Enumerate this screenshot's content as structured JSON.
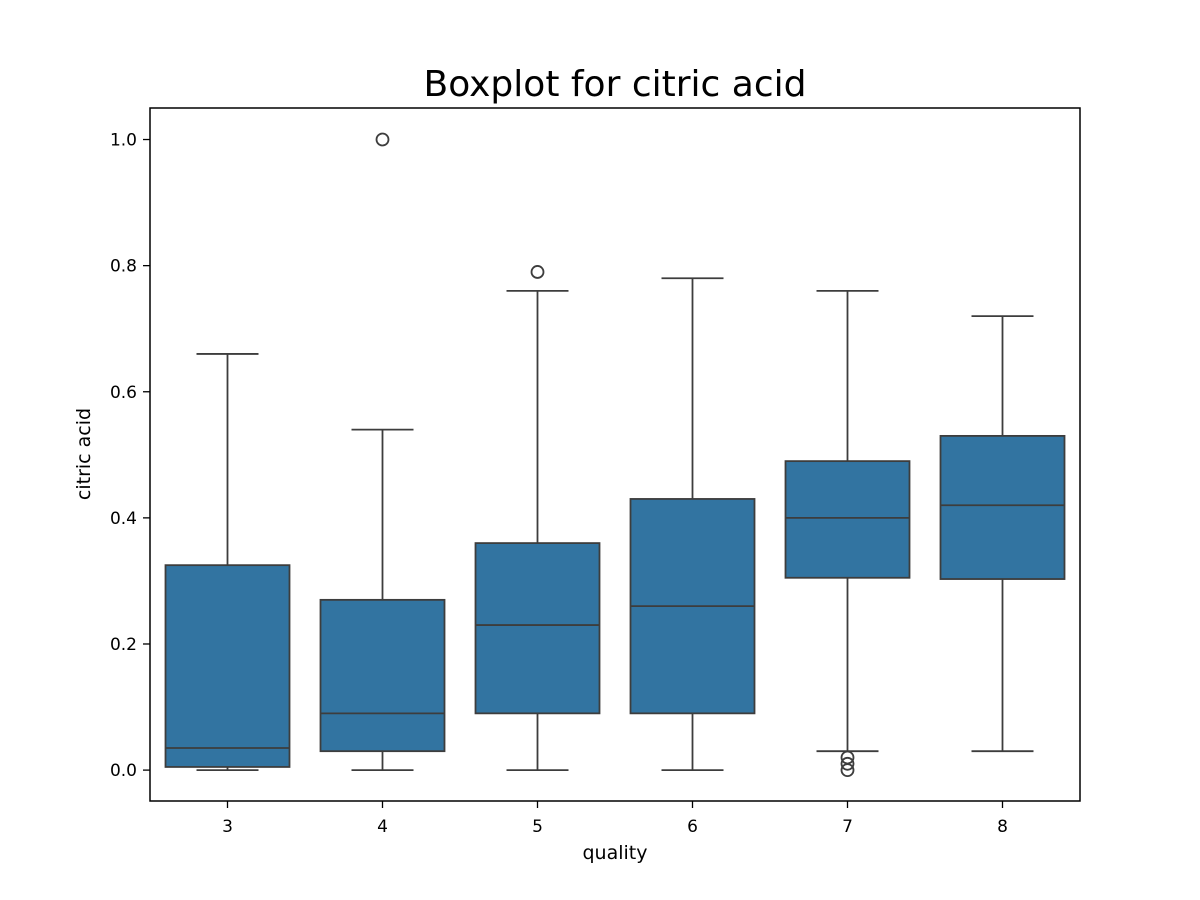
{
  "chart_data": {
    "type": "boxplot",
    "title": "Boxplot for citric acid",
    "xlabel": "quality",
    "ylabel": "citric acid",
    "categories": [
      "3",
      "4",
      "5",
      "6",
      "7",
      "8"
    ],
    "yticks": [
      "0.0",
      "0.2",
      "0.4",
      "0.6",
      "0.8",
      "1.0"
    ],
    "ylim": [
      -0.049,
      1.05
    ],
    "grid": false,
    "box_color": "#3274a1",
    "line_color": "#3d3d3d",
    "boxes": [
      {
        "category": "3",
        "whisker_low": 0.0,
        "q1": 0.005,
        "median": 0.035,
        "q3": 0.325,
        "whisker_high": 0.66,
        "outliers": []
      },
      {
        "category": "4",
        "whisker_low": 0.0,
        "q1": 0.03,
        "median": 0.09,
        "q3": 0.27,
        "whisker_high": 0.54,
        "outliers": [
          1.0
        ]
      },
      {
        "category": "5",
        "whisker_low": 0.0,
        "q1": 0.09,
        "median": 0.23,
        "q3": 0.36,
        "whisker_high": 0.76,
        "outliers": [
          0.79
        ]
      },
      {
        "category": "6",
        "whisker_low": 0.0,
        "q1": 0.09,
        "median": 0.26,
        "q3": 0.43,
        "whisker_high": 0.78,
        "outliers": []
      },
      {
        "category": "7",
        "whisker_low": 0.03,
        "q1": 0.305,
        "median": 0.4,
        "q3": 0.49,
        "whisker_high": 0.76,
        "outliers": [
          0.0,
          0.01,
          0.02
        ]
      },
      {
        "category": "8",
        "whisker_low": 0.03,
        "q1": 0.303,
        "median": 0.42,
        "q3": 0.53,
        "whisker_high": 0.72,
        "outliers": []
      }
    ]
  }
}
